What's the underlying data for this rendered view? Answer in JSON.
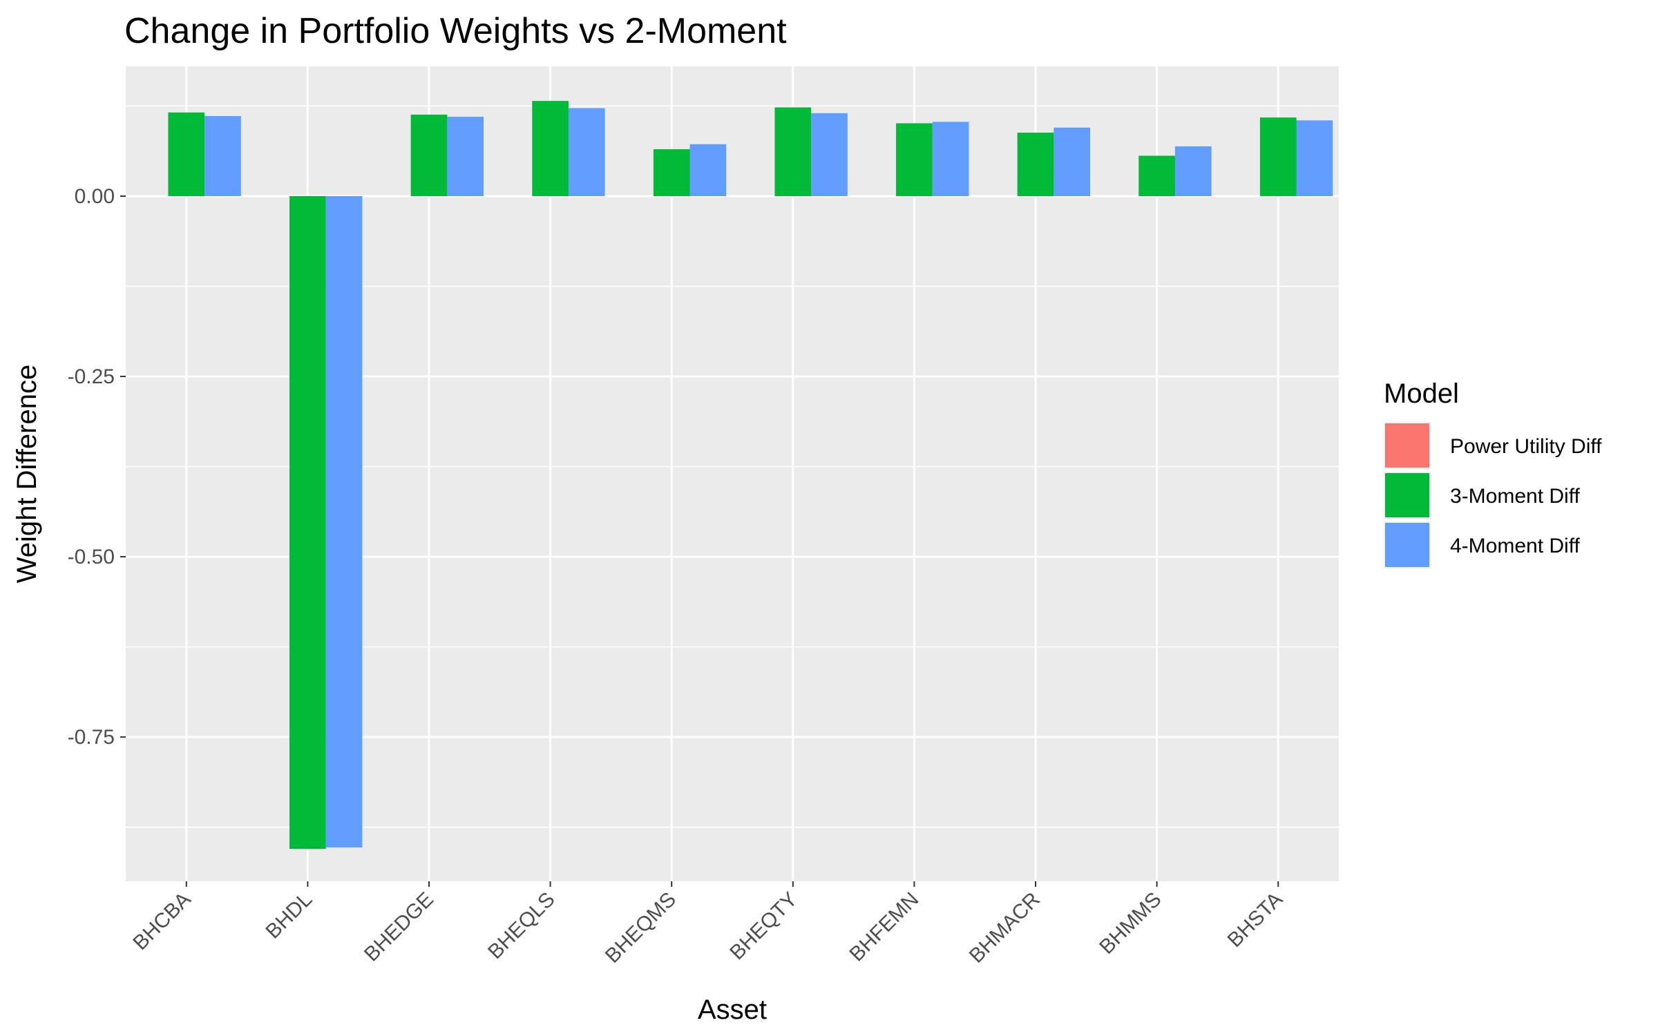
{
  "chart_data": {
    "type": "bar",
    "title": "Change in Portfolio Weights vs 2-Moment",
    "xlabel": "Asset",
    "ylabel": "Weight Difference",
    "categories": [
      "BHCBA",
      "BHDL",
      "BHEDGE",
      "BHEQLS",
      "BHEQMS",
      "BHEQTY",
      "BHFEMN",
      "BHMACR",
      "BHMMS",
      "BHSTA"
    ],
    "series": [
      {
        "name": "Power Utility Diff",
        "color": "#F8766D",
        "values": [
          0,
          0,
          0,
          0,
          0,
          0,
          0,
          0,
          0,
          0
        ]
      },
      {
        "name": "3-Moment Diff",
        "color": "#00BA38",
        "values": [
          0.116,
          -0.905,
          0.113,
          0.132,
          0.065,
          0.123,
          0.101,
          0.088,
          0.056,
          0.109
        ]
      },
      {
        "name": "4-Moment Diff",
        "color": "#619CFF",
        "values": [
          0.111,
          -0.903,
          0.11,
          0.122,
          0.072,
          0.115,
          0.103,
          0.095,
          0.069,
          0.105
        ]
      }
    ],
    "ylim": [
      -0.95,
      0.18
    ],
    "yticks": [
      0.0,
      -0.25,
      -0.5,
      -0.75
    ],
    "ytick_labels": [
      "0.00",
      "-0.25",
      "-0.50",
      "-0.75"
    ],
    "grid": true,
    "legend": {
      "title": "Model",
      "position": "right"
    }
  }
}
